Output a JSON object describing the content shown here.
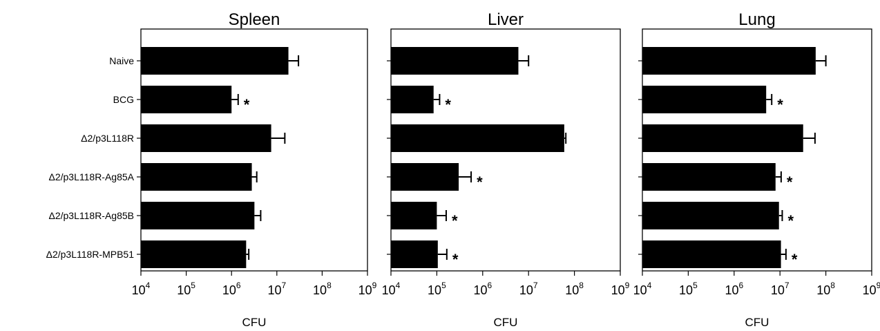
{
  "chart_data": {
    "type": "bar",
    "orientation": "horizontal",
    "x_scale": "log",
    "xlim": [
      10000,
      1000000000
    ],
    "x_ticks": [
      {
        "base": "10",
        "exp": "4"
      },
      {
        "base": "10",
        "exp": "5"
      },
      {
        "base": "10",
        "exp": "6"
      },
      {
        "base": "10",
        "exp": "7"
      },
      {
        "base": "10",
        "exp": "8"
      },
      {
        "base": "10",
        "exp": "9"
      }
    ],
    "categories": [
      "Naive",
      "BCG",
      "Δ2/p3L118R",
      "Δ2/p3L118R-Ag85A",
      "Δ2/p3L118R-Ag85B",
      "Δ2/p3L118R-MPB51"
    ],
    "significance_mark": "*",
    "panels": [
      {
        "title": "Spleen",
        "xlabel": "CFU",
        "values": [
          18000000,
          1000000,
          7500000,
          2800000,
          3200000,
          2100000
        ],
        "errors_upper": [
          30000000,
          1400000,
          15000000,
          3600000,
          4400000,
          2400000
        ],
        "significant": [
          false,
          true,
          false,
          false,
          false,
          false
        ]
      },
      {
        "title": "Liver",
        "xlabel": "CFU",
        "values": [
          6000000,
          85000,
          60000000,
          300000,
          100000,
          105000
        ],
        "errors_upper": [
          10000000,
          115000,
          65000000,
          560000,
          160000,
          165000
        ],
        "significant": [
          false,
          true,
          false,
          true,
          true,
          true
        ]
      },
      {
        "title": "Lung",
        "xlabel": "CFU",
        "values": [
          60000000,
          5000000,
          32000000,
          8000000,
          9500000,
          10500000
        ],
        "errors_upper": [
          100000000,
          6600000,
          58000000,
          10600000,
          11200000,
          13500000
        ],
        "significant": [
          false,
          true,
          false,
          true,
          true,
          true
        ]
      }
    ]
  }
}
